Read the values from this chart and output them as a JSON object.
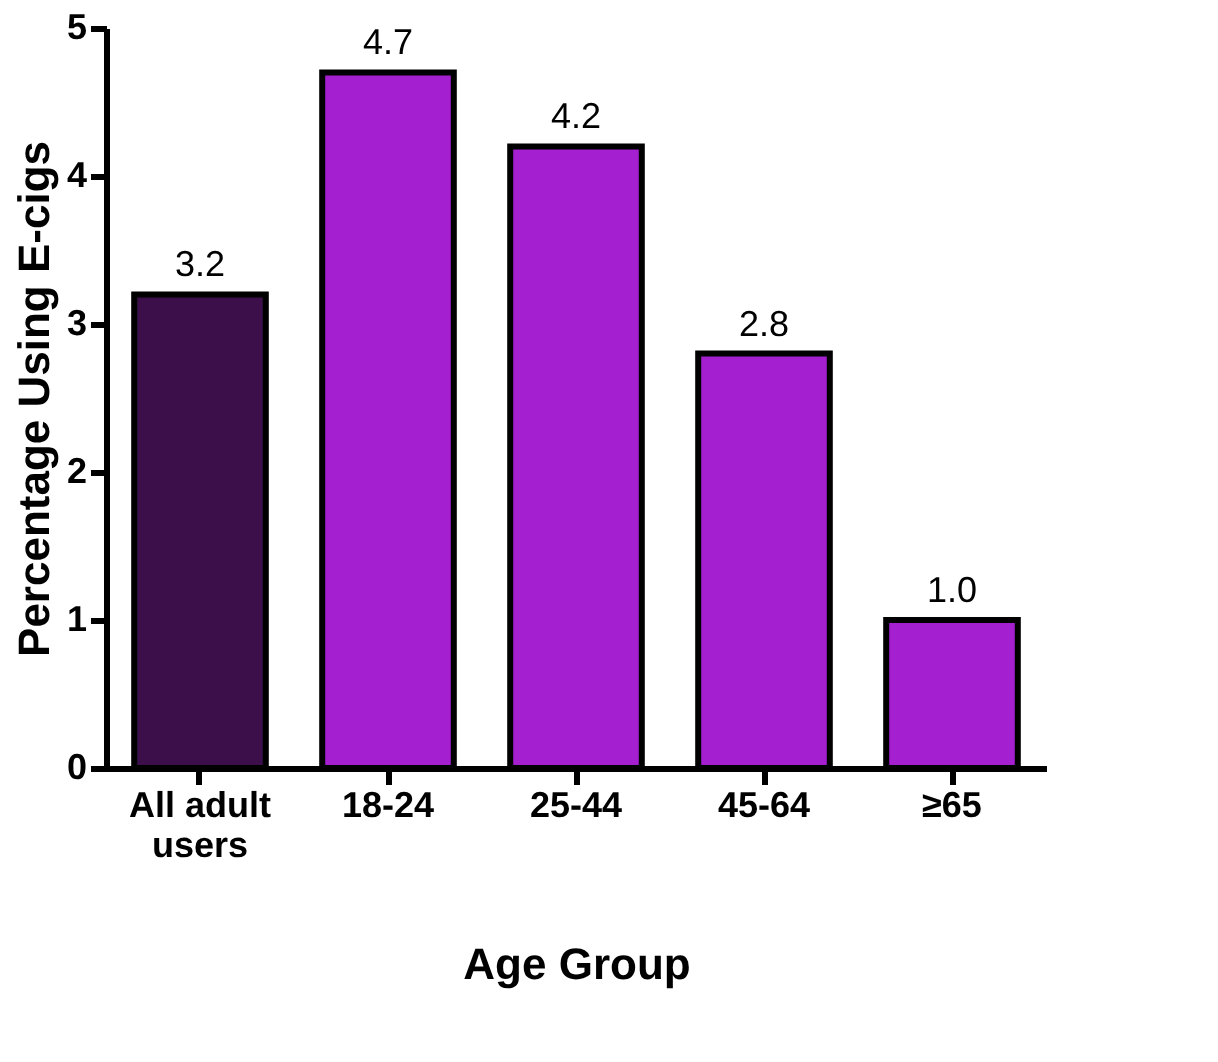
{
  "chart_data": {
    "type": "bar",
    "xlabel": "Age Group",
    "ylabel": "Percentage Using E-cigs",
    "categories": [
      "All adult users",
      "18-24",
      "25-44",
      "45-64",
      "≥65"
    ],
    "values": [
      3.2,
      4.7,
      4.2,
      2.8,
      1.0
    ],
    "colors": [
      "#3c0f4b",
      "#a31fd0",
      "#a31fd0",
      "#a31fd0",
      "#a31fd0"
    ],
    "value_labels": [
      "3.2",
      "4.7",
      "4.2",
      "2.8",
      "1.0"
    ],
    "ylim": [
      0,
      5
    ],
    "yticks": [
      0,
      1,
      2,
      3,
      4,
      5
    ],
    "grid": false
  }
}
